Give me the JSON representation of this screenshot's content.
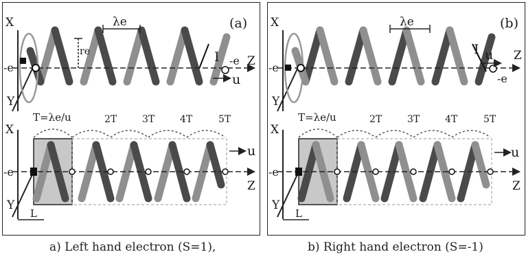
{
  "panel_a": {
    "tag": "(a)",
    "top": {
      "axis_x": "X",
      "axis_y": "Y",
      "axis_z": "Z",
      "charge": "-e",
      "charge_right": "-e",
      "wavelength": "λe",
      "radius": "re",
      "current": "I",
      "velocity": "u"
    },
    "bottom": {
      "axis_x": "X",
      "axis_y": "Y",
      "axis_z": "Z",
      "charge": "-e",
      "period": "T=λe/u",
      "periods": [
        "2T",
        "3T",
        "4T",
        "5T"
      ],
      "velocity": "u",
      "length": "L"
    }
  },
  "panel_b": {
    "tag": "(b)",
    "top": {
      "axis_x": "X",
      "axis_y": "Y",
      "axis_z": "Z",
      "charge": "-e",
      "charge_right": "-e",
      "wavelength": "λe",
      "current": "I",
      "velocity": "u"
    },
    "bottom": {
      "axis_x": "X",
      "axis_y": "Y",
      "axis_z": "Z",
      "charge": "-e",
      "period": "T=λe/u",
      "periods": [
        "2T",
        "3T",
        "4T",
        "5T"
      ],
      "velocity": "u",
      "length": "L"
    }
  },
  "captions": {
    "a": "a) Left hand electron (S=1),",
    "b": "b) Right hand electron (S=-1)"
  },
  "colors": {
    "light_stroke": "#8f8f8f",
    "dark_stroke": "#4a4a4a",
    "shade": "#c8c8c8"
  }
}
